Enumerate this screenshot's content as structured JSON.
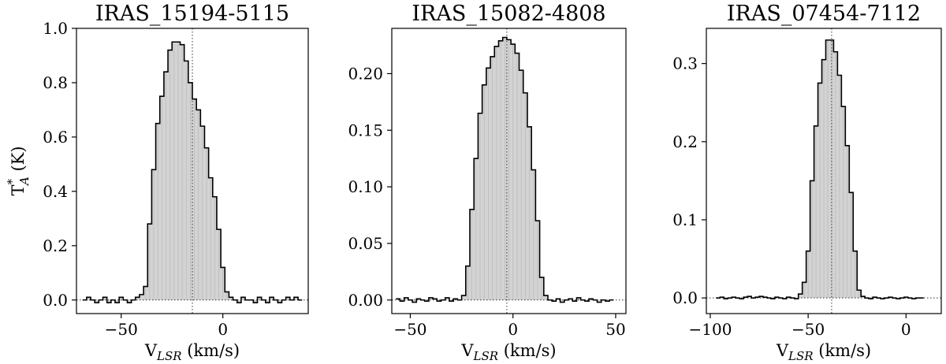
{
  "chart_data": [
    {
      "type": "line",
      "style": "step-filled",
      "title": "IRAS_15194-5115",
      "xlabel": "V",
      "xlabel_sub": "LSR",
      "xlabel_unit": " (km/s)",
      "ylabel": "T",
      "ylabel_sup": "*",
      "ylabel_sub": "A",
      "ylabel_unit": " (K)",
      "xlim": [
        -72,
        42
      ],
      "ylim": [
        -0.05,
        1.0
      ],
      "xticks": [
        -50,
        0
      ],
      "xtick_labels": [
        "−50",
        "0"
      ],
      "yticks": [
        0.0,
        0.2,
        0.4,
        0.6,
        0.8,
        1.0
      ],
      "ytick_labels": [
        "0.0",
        "0.2",
        "0.4",
        "0.6",
        "0.8",
        "1.0"
      ],
      "vline": -15,
      "hline": 0,
      "fill_color": "#d3d3d3",
      "line_color": "#000000",
      "x": [
        -68,
        -66,
        -64,
        -62,
        -60,
        -58,
        -56,
        -54,
        -52,
        -50,
        -48,
        -46,
        -44,
        -42,
        -40,
        -38,
        -36,
        -34,
        -32,
        -30,
        -28,
        -26,
        -24,
        -22,
        -20,
        -18,
        -16,
        -14,
        -12,
        -10,
        -8,
        -6,
        -4,
        -2,
        0,
        2,
        4,
        6,
        8,
        10,
        12,
        14,
        16,
        18,
        20,
        22,
        24,
        26,
        28,
        30,
        32,
        34,
        36,
        38
      ],
      "y": [
        0.0,
        0.01,
        0.0,
        -0.01,
        0.0,
        0.01,
        -0.01,
        0.0,
        -0.01,
        0.01,
        0.0,
        -0.01,
        0.0,
        0.01,
        0.02,
        0.05,
        0.28,
        0.48,
        0.65,
        0.75,
        0.84,
        0.92,
        0.95,
        0.95,
        0.94,
        0.88,
        0.8,
        0.74,
        0.7,
        0.64,
        0.56,
        0.45,
        0.38,
        0.26,
        0.12,
        0.03,
        0.01,
        0.0,
        -0.01,
        0.01,
        0.0,
        0.0,
        -0.01,
        0.01,
        0.0,
        -0.01,
        0.01,
        0.0,
        -0.01,
        0.0,
        0.01,
        0.0,
        0.01,
        0.0
      ]
    },
    {
      "type": "line",
      "style": "step-filled",
      "title": "IRAS_15082-4808",
      "xlabel": "V",
      "xlabel_sub": "LSR",
      "xlabel_unit": " (km/s)",
      "ylabel": "",
      "xlim": [
        -59,
        55
      ],
      "ylim": [
        -0.012,
        0.24
      ],
      "xticks": [
        -50,
        0,
        50
      ],
      "xtick_labels": [
        "−50",
        "0",
        "50"
      ],
      "yticks": [
        0.0,
        0.05,
        0.1,
        0.15,
        0.2
      ],
      "ytick_labels": [
        "0.00",
        "0.05",
        "0.10",
        "0.15",
        "0.20"
      ],
      "vline": -3,
      "hline": 0,
      "fill_color": "#d3d3d3",
      "line_color": "#000000",
      "x": [
        -56,
        -54,
        -52,
        -50,
        -48,
        -46,
        -44,
        -42,
        -40,
        -38,
        -36,
        -34,
        -32,
        -30,
        -28,
        -26,
        -24,
        -22,
        -20,
        -18,
        -16,
        -14,
        -12,
        -10,
        -8,
        -6,
        -4,
        -2,
        0,
        2,
        4,
        6,
        8,
        10,
        12,
        14,
        16,
        18,
        20,
        22,
        24,
        26,
        28,
        30,
        32,
        34,
        36,
        38,
        40,
        42,
        44,
        46,
        48
      ],
      "y": [
        0.001,
        -0.001,
        0.002,
        0.0,
        -0.002,
        0.001,
        0.0,
        -0.001,
        0.002,
        0.001,
        -0.001,
        0.0,
        0.002,
        -0.001,
        0.001,
        0.0,
        0.004,
        0.03,
        0.08,
        0.125,
        0.165,
        0.19,
        0.205,
        0.215,
        0.224,
        0.229,
        0.232,
        0.23,
        0.226,
        0.218,
        0.203,
        0.183,
        0.153,
        0.115,
        0.07,
        0.02,
        0.004,
        0.0,
        -0.001,
        0.001,
        -0.002,
        0.0,
        0.001,
        -0.001,
        0.002,
        0.0,
        -0.001,
        0.001,
        0.0,
        -0.002,
        0.0,
        -0.001,
        0.0
      ]
    },
    {
      "type": "line",
      "style": "step-filled",
      "title": "IRAS_07454-7112",
      "xlabel": "V",
      "xlabel_sub": "LSR",
      "xlabel_unit": " (km/s)",
      "ylabel": "",
      "xlim": [
        -102,
        18
      ],
      "ylim": [
        -0.02,
        0.345
      ],
      "xticks": [
        -100,
        -50,
        0
      ],
      "xtick_labels": [
        "−100",
        "−50",
        "0"
      ],
      "yticks": [
        0.0,
        0.1,
        0.2,
        0.3
      ],
      "ytick_labels": [
        "0.0",
        "0.1",
        "0.2",
        "0.3"
      ],
      "vline": -38,
      "hline": 0,
      "fill_color": "#d3d3d3",
      "line_color": "#000000",
      "x": [
        -96,
        -94,
        -92,
        -90,
        -88,
        -86,
        -84,
        -82,
        -80,
        -78,
        -76,
        -74,
        -72,
        -70,
        -68,
        -66,
        -64,
        -62,
        -60,
        -58,
        -56,
        -54,
        -52,
        -50,
        -48,
        -46,
        -44,
        -42,
        -40,
        -38,
        -36,
        -34,
        -32,
        -30,
        -28,
        -26,
        -24,
        -22,
        -20,
        -18,
        -16,
        -14,
        -12,
        -10,
        -8,
        -6,
        -4,
        -2,
        0,
        2,
        4,
        6,
        8
      ],
      "y": [
        0.0,
        0.001,
        -0.001,
        0.0,
        0.001,
        0.0,
        -0.001,
        0.001,
        0.002,
        0.0,
        0.001,
        0.002,
        0.001,
        0.0,
        -0.001,
        0.001,
        0.0,
        -0.001,
        0.001,
        0.0,
        -0.001,
        0.005,
        0.02,
        0.06,
        0.15,
        0.22,
        0.275,
        0.305,
        0.33,
        0.33,
        0.315,
        0.285,
        0.245,
        0.195,
        0.135,
        0.06,
        0.01,
        0.002,
        0.0,
        -0.001,
        0.001,
        0.0,
        -0.001,
        0.0,
        0.001,
        0.0,
        -0.001,
        0.0,
        0.001,
        0.0,
        -0.001,
        0.0,
        0.0
      ]
    }
  ]
}
